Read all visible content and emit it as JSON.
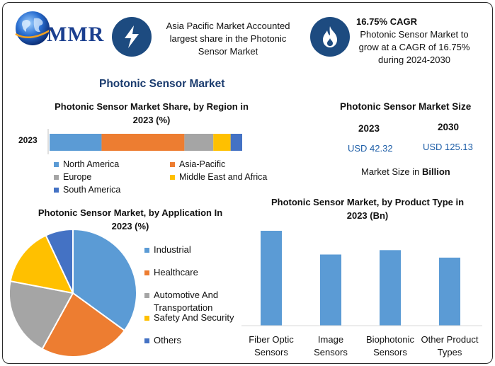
{
  "header": {
    "logo_text": "MMR",
    "callout1": [
      "Asia Pacific Market Accounted",
      "largest share in the Photonic",
      "Sensor Market"
    ],
    "callout2_title": "16.75% CAGR",
    "callout2": [
      "Photonic Sensor Market to",
      "grow at a CAGR of 16.75%",
      "during 2024-2030"
    ]
  },
  "main_title": "Photonic Sensor Market",
  "market_size": {
    "title": "Photonic Sensor Market Size",
    "year1": "2023",
    "year2": "2030",
    "value1": "USD 42.32",
    "value2": "USD 125.13",
    "note_prefix": "Market Size in ",
    "note_unit": "Billion"
  },
  "colors": {
    "north_america": "#5b9bd5",
    "asia_pacific": "#ed7d31",
    "europe": "#a5a5a5",
    "mea": "#ffc000",
    "south_america": "#4472c4",
    "icon_bg": "#1d4b80",
    "title": "#1a3b6e"
  },
  "chart_data": [
    {
      "type": "bar",
      "orientation": "horizontal-stacked",
      "title": "Photonic Sensor Market Share, by Region in 2023 (%)",
      "categories": [
        "2023"
      ],
      "series": [
        {
          "name": "North America",
          "values": [
            27
          ]
        },
        {
          "name": "Asia-Pacific",
          "values": [
            43
          ]
        },
        {
          "name": "Europe",
          "values": [
            15
          ]
        },
        {
          "name": "Middle East and Africa",
          "values": [
            9
          ]
        },
        {
          "name": "South America",
          "values": [
            6
          ]
        }
      ]
    },
    {
      "type": "pie",
      "title": "Photonic Sensor Market, by Application In 2023 (%)",
      "labels": [
        "Industrial",
        "Healthcare",
        "Automotive And Transportation",
        "Safety And Security",
        "Others"
      ],
      "legend_lines": [
        [
          "Industrial"
        ],
        [
          "Healthcare"
        ],
        [
          "Automotive And",
          "Transportation"
        ],
        [
          "Safety And Security"
        ],
        [
          "Others"
        ]
      ],
      "values": [
        35,
        23,
        20,
        15,
        7
      ],
      "colors": [
        "#5b9bd5",
        "#ed7d31",
        "#a5a5a5",
        "#ffc000",
        "#4472c4"
      ]
    },
    {
      "type": "bar",
      "title": "Photonic Sensor Market, by Product Type in 2023 (Bn)",
      "categories": [
        [
          "Fiber Optic",
          "Sensors"
        ],
        [
          "Image",
          "Sensors"
        ],
        [
          "Biophotonic",
          "Sensors"
        ],
        [
          "Other Product",
          "Types"
        ]
      ],
      "values": [
        15.2,
        11.4,
        12.1,
        10.9
      ],
      "ylim": [
        0,
        15.2
      ],
      "color": "#5b9bd5"
    }
  ]
}
